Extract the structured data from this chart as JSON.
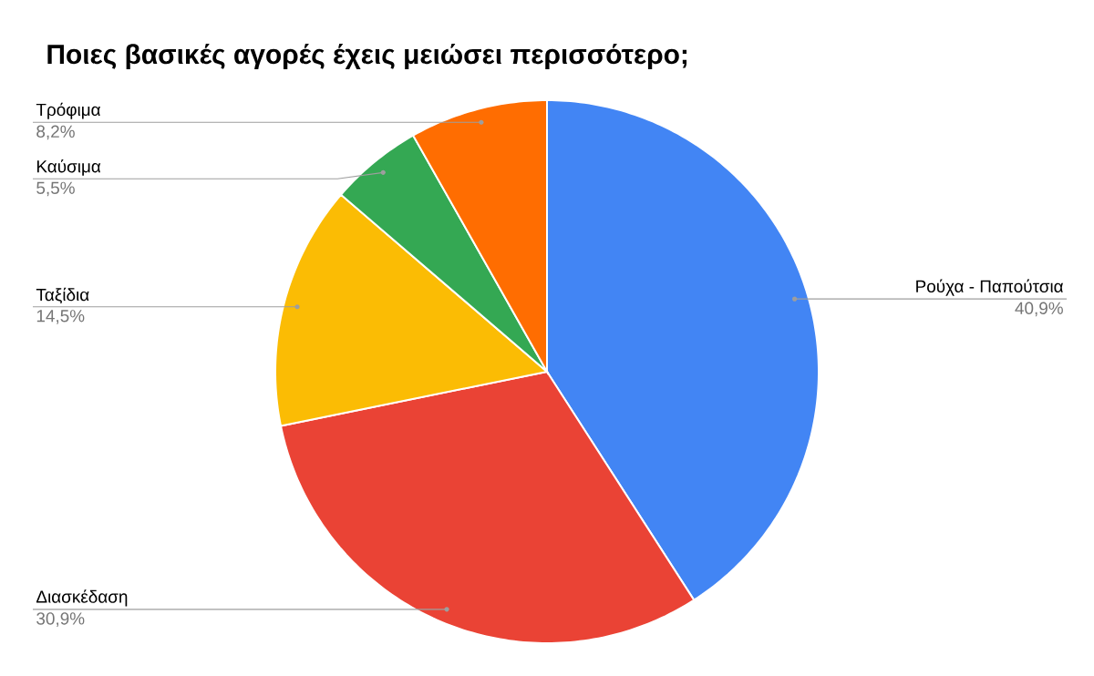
{
  "chart_data": {
    "type": "pie",
    "title": "Ποιες βασικές αγορές έχεις μειώσει περισσότερο;",
    "categories": [
      "Ρούχα - Παπούτσια",
      "Διασκέδαση",
      "Ταξίδια",
      "Καύσιμα",
      "Τρόφιμα"
    ],
    "values": [
      40.9,
      30.9,
      14.5,
      5.5,
      8.2
    ],
    "value_labels": [
      "40,9%",
      "30,9%",
      "14,5%",
      "5,5%",
      "8,2%"
    ],
    "colors": [
      "#4285f4",
      "#ea4335",
      "#fbbc04",
      "#34a853",
      "#ff6d01"
    ]
  }
}
